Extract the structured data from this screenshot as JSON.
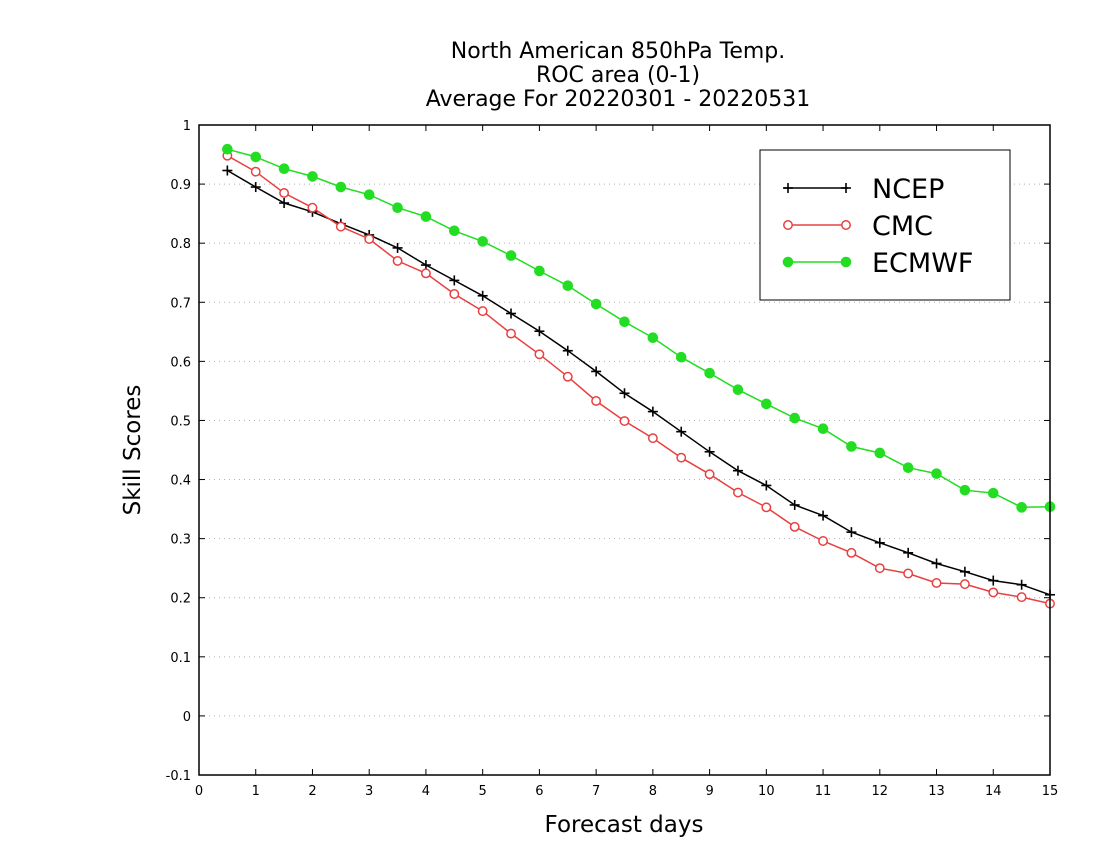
{
  "chart_data": {
    "type": "line",
    "title_lines": [
      "North American 850hPa Temp.",
      "ROC area (0-1)",
      "Average For 20220301 - 20220531"
    ],
    "xlabel": "Forecast days",
    "ylabel": "Skill Scores",
    "xlim": [
      0,
      15
    ],
    "ylim": [
      -0.1,
      1
    ],
    "x_ticks": [
      0,
      1,
      2,
      3,
      4,
      5,
      6,
      7,
      8,
      9,
      10,
      11,
      12,
      13,
      14,
      15
    ],
    "y_ticks": [
      -0.1,
      0,
      0.1,
      0.2,
      0.3,
      0.4,
      0.5,
      0.6,
      0.7,
      0.8,
      0.9,
      1
    ],
    "y_tick_labels": [
      "-0.1",
      "0",
      "0.1",
      "0.2",
      "0.3",
      "0.4",
      "0.5",
      "0.6",
      "0.7",
      "0.8",
      "0.9",
      "1"
    ],
    "grid": "horizontal dotted",
    "legend_position": "top-right",
    "x": [
      0.5,
      1,
      1.5,
      2,
      2.5,
      3,
      3.5,
      4,
      4.5,
      5,
      5.5,
      6,
      6.5,
      7,
      7.5,
      8,
      8.5,
      9,
      9.5,
      10,
      10.5,
      11,
      11.5,
      12,
      12.5,
      13,
      13.5,
      14,
      14.5,
      15
    ],
    "series": [
      {
        "name": "NCEP",
        "color": "#000000",
        "marker": "plus",
        "values": [
          0.923,
          0.895,
          0.868,
          0.853,
          0.833,
          0.814,
          0.792,
          0.763,
          0.737,
          0.711,
          0.681,
          0.651,
          0.618,
          0.583,
          0.546,
          0.515,
          0.481,
          0.447,
          0.415,
          0.39,
          0.357,
          0.339,
          0.311,
          0.293,
          0.276,
          0.258,
          0.244,
          0.229,
          0.222,
          0.205
        ]
      },
      {
        "name": "CMC",
        "color": "#e84040",
        "marker": "open-circle",
        "values": [
          0.948,
          0.921,
          0.885,
          0.86,
          0.828,
          0.807,
          0.77,
          0.749,
          0.714,
          0.685,
          0.647,
          0.612,
          0.574,
          0.533,
          0.499,
          0.47,
          0.437,
          0.409,
          0.378,
          0.353,
          0.32,
          0.296,
          0.276,
          0.25,
          0.241,
          0.225,
          0.223,
          0.209,
          0.201,
          0.19
        ]
      },
      {
        "name": "ECMWF",
        "color": "#22dd22",
        "marker": "filled-circle",
        "values": [
          0.959,
          0.946,
          0.926,
          0.913,
          0.895,
          0.882,
          0.86,
          0.845,
          0.821,
          0.803,
          0.779,
          0.753,
          0.728,
          0.697,
          0.667,
          0.64,
          0.607,
          0.58,
          0.552,
          0.528,
          0.504,
          0.486,
          0.456,
          0.445,
          0.42,
          0.41,
          0.382,
          0.377,
          0.353,
          0.354
        ]
      }
    ]
  }
}
